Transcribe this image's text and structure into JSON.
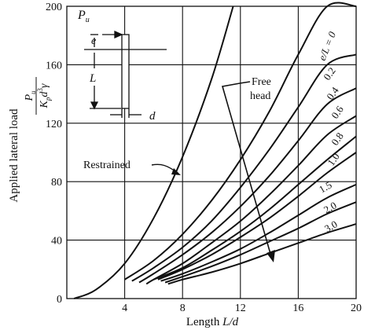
{
  "chart_data": {
    "type": "line",
    "xlabel_main": "Length ",
    "xlabel_var": "L/d",
    "ylabel_main": "Applied lateral load",
    "ylabel_num": "P",
    "ylabel_num_sub": "u",
    "ylabel_den_K": "K",
    "ylabel_den_sub": "p",
    "ylabel_den_d": "d",
    "ylabel_den_exp": "3",
    "ylabel_den_g": "γ",
    "xlim": [
      0,
      20
    ],
    "ylim": [
      0,
      200
    ],
    "xticks": [
      "4",
      "8",
      "12",
      "16",
      "20"
    ],
    "xtick_values": [
      4,
      8,
      12,
      16,
      20
    ],
    "yticks": [
      "0",
      "40",
      "80",
      "120",
      "160",
      "200"
    ],
    "ytick_values": [
      0,
      40,
      80,
      120,
      160,
      200
    ],
    "grid": true,
    "annotations": {
      "restrained": "Restrained",
      "free_head_1": "Free",
      "free_head_2": "head"
    },
    "inset": {
      "load": "P",
      "load_sub": "u",
      "e": "e",
      "L": "L",
      "d": "d"
    },
    "series": [
      {
        "name": "Restrained",
        "label": "",
        "x": [
          0.5,
          2,
          4,
          6,
          8,
          10,
          11.5
        ],
        "y": [
          0,
          6,
          24,
          55,
          97,
          150,
          200
        ]
      },
      {
        "name": "e/L = 0",
        "label": "e/L = 0",
        "x": [
          4,
          6,
          8,
          10,
          12,
          14,
          16,
          18,
          20
        ],
        "y": [
          13,
          26,
          44,
          67,
          95,
          128,
          167,
          200,
          200
        ]
      },
      {
        "name": "0.2",
        "label": "0.2",
        "x": [
          4.5,
          6,
          8,
          10,
          12,
          14,
          16,
          18,
          20
        ],
        "y": [
          12,
          21,
          35,
          53,
          76,
          102,
          131,
          160,
          167
        ]
      },
      {
        "name": "0.4",
        "label": "0.4",
        "x": [
          5,
          6,
          8,
          10,
          12,
          14,
          16,
          18,
          20
        ],
        "y": [
          11,
          17,
          30,
          45,
          63,
          84,
          108,
          133,
          144
        ]
      },
      {
        "name": "0.6",
        "label": "0.6",
        "x": [
          5.5,
          6,
          8,
          10,
          12,
          14,
          16,
          18,
          20
        ],
        "y": [
          10,
          13,
          24,
          38,
          53,
          71,
          91,
          112,
          125
        ]
      },
      {
        "name": "0.8",
        "label": "0.8",
        "x": [
          6,
          8,
          10,
          12,
          14,
          16,
          18,
          20
        ],
        "y": [
          13,
          21,
          33,
          46,
          61,
          78,
          95,
          111
        ]
      },
      {
        "name": "1.0",
        "label": "1.0",
        "x": [
          6.3,
          8,
          10,
          12,
          14,
          16,
          18,
          20
        ],
        "y": [
          13,
          20,
          30,
          42,
          55,
          70,
          86,
          100
        ]
      },
      {
        "name": "1.5",
        "label": "1.5",
        "x": [
          6.5,
          8,
          10,
          12,
          14,
          16,
          18,
          20
        ],
        "y": [
          12,
          17,
          25,
          34,
          45,
          57,
          69,
          78
        ]
      },
      {
        "name": "2.0",
        "label": "2.0",
        "x": [
          6.8,
          8,
          10,
          12,
          14,
          16,
          18,
          20
        ],
        "y": [
          11,
          15,
          22,
          30,
          39,
          48,
          58,
          66
        ]
      },
      {
        "name": "3.0",
        "label": "3.0",
        "x": [
          7,
          8,
          10,
          12,
          14,
          16,
          18,
          20
        ],
        "y": [
          10,
          13,
          18,
          24,
          31,
          38,
          45,
          51
        ]
      }
    ]
  }
}
